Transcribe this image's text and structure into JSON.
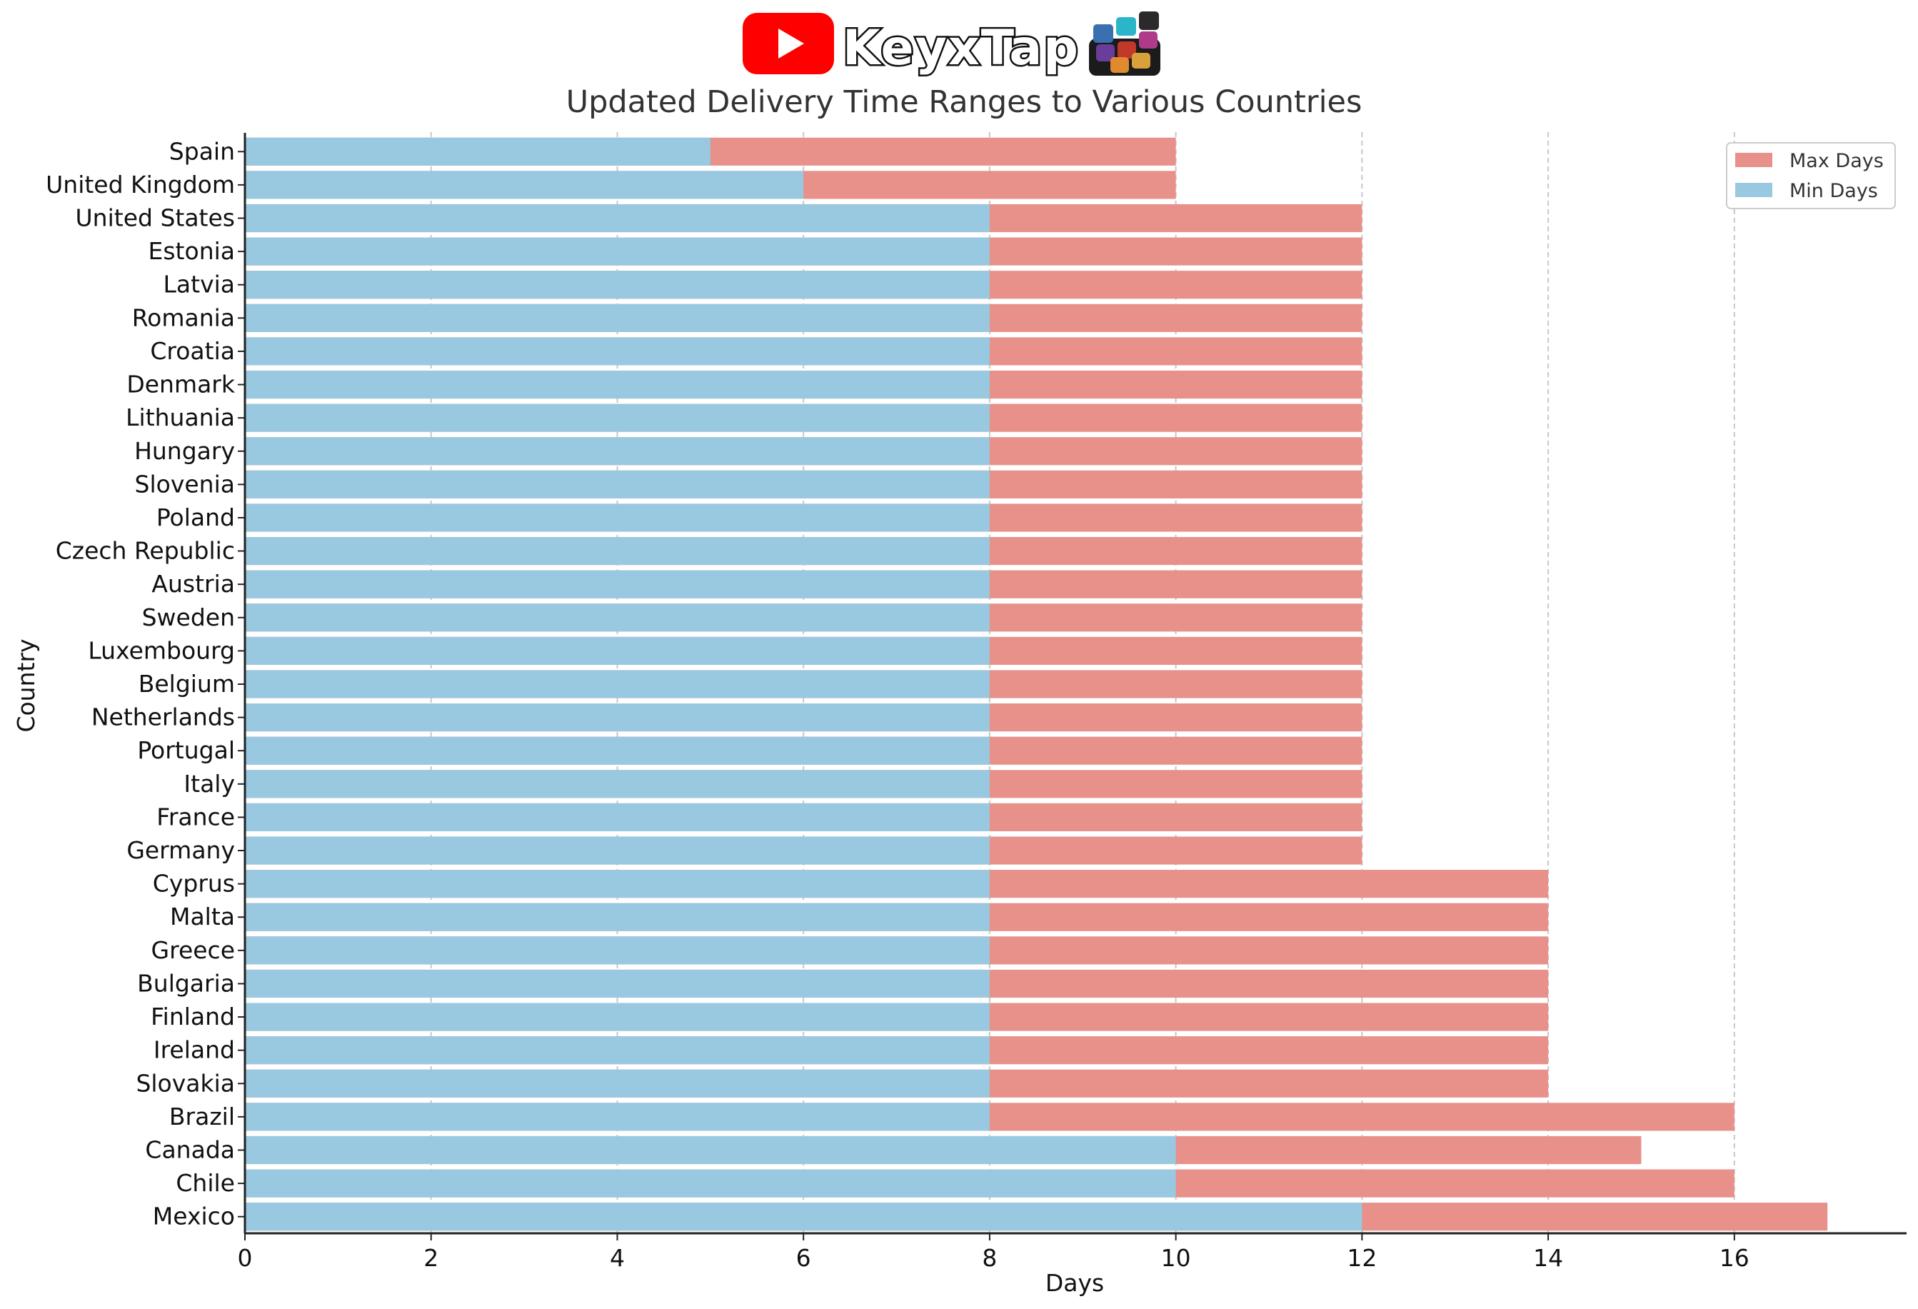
{
  "logo": {
    "brand_text": "KeyxTap",
    "play_icon": "youtube-play-icon",
    "keycaps_icon": "keyboard-keycaps-icon",
    "youtube_red": "#ff0000"
  },
  "chart_data": {
    "type": "bar",
    "orientation": "horizontal",
    "stacked_overlay": true,
    "title": "Updated Delivery Time Ranges to Various Countries",
    "xlabel": "Days",
    "ylabel": "Country",
    "xlim": [
      0,
      17.85
    ],
    "xticks": [
      0,
      2,
      4,
      6,
      8,
      10,
      12,
      14,
      16
    ],
    "grid": "vertical dashed",
    "legend_position": "top-right",
    "categories": [
      "Spain",
      "United Kingdom",
      "United States",
      "Estonia",
      "Latvia",
      "Romania",
      "Croatia",
      "Denmark",
      "Lithuania",
      "Hungary",
      "Slovenia",
      "Poland",
      "Czech Republic",
      "Austria",
      "Sweden",
      "Luxembourg",
      "Belgium",
      "Netherlands",
      "Portugal",
      "Italy",
      "France",
      "Germany",
      "Cyprus",
      "Malta",
      "Greece",
      "Bulgaria",
      "Finland",
      "Ireland",
      "Slovakia",
      "Brazil",
      "Canada",
      "Chile",
      "Mexico"
    ],
    "series": [
      {
        "name": "Max Days",
        "color": "#e8908a",
        "values": [
          10,
          10,
          12,
          12,
          12,
          12,
          12,
          12,
          12,
          12,
          12,
          12,
          12,
          12,
          12,
          12,
          12,
          12,
          12,
          12,
          12,
          12,
          14,
          14,
          14,
          14,
          14,
          14,
          14,
          16,
          15,
          16,
          17
        ]
      },
      {
        "name": "Min Days",
        "color": "#99c9e0",
        "values": [
          5,
          6,
          8,
          8,
          8,
          8,
          8,
          8,
          8,
          8,
          8,
          8,
          8,
          8,
          8,
          8,
          8,
          8,
          8,
          8,
          8,
          8,
          8,
          8,
          8,
          8,
          8,
          8,
          8,
          8,
          10,
          10,
          12
        ]
      }
    ]
  }
}
